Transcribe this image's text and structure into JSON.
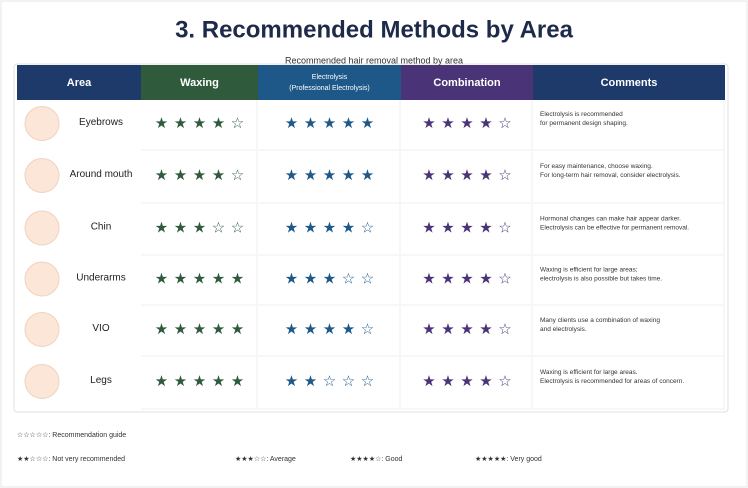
{
  "title": "3. Recommended Methods by Area",
  "subtitle": "Recommended hair removal method by area",
  "table": {
    "headers": [
      "Area",
      "Waxing",
      [
        "Electrolysis",
        "(Professional Electrolysis)"
      ],
      "Combination",
      "Comments"
    ],
    "max_rating": 5,
    "rows": [
      {
        "area": "Eyebrows",
        "ratings": [
          4,
          5,
          4
        ],
        "comment": [
          "Electrolysis is recommended",
          "for permanent design shaping."
        ]
      },
      {
        "area": "Around mouth",
        "ratings": [
          4,
          5,
          4
        ],
        "comment": [
          "For easy maintenance, choose waxing.",
          "For long-term hair removal, consider electrolysis."
        ]
      },
      {
        "area": "Chin",
        "ratings": [
          3,
          4,
          4
        ],
        "comment": [
          "Hormonal changes can make hair appear darker.",
          "Electrolysis can be effective for permanent removal."
        ]
      },
      {
        "area": "Underarms",
        "ratings": [
          5,
          3,
          4
        ],
        "comment": [
          "Waxing is efficient for large areas;",
          "electrolysis is also possible but takes time."
        ]
      },
      {
        "area": "VIO",
        "ratings": [
          5,
          4,
          4
        ],
        "comment": [
          "Many clients use a combination of waxing",
          "and electrolysis."
        ]
      },
      {
        "area": "Legs",
        "ratings": [
          5,
          2,
          4
        ],
        "comment": [
          "Waxing is efficient for large areas.",
          "Electrolysis is recommended for areas of concern."
        ]
      }
    ]
  },
  "legend": {
    "guide": "☆☆☆☆☆: Recommendation guide",
    "items": [
      "★★☆☆☆: Not very recommended",
      "★★★☆☆: Average",
      "★★★★☆: Good",
      "★★★★★: Very good"
    ]
  }
}
